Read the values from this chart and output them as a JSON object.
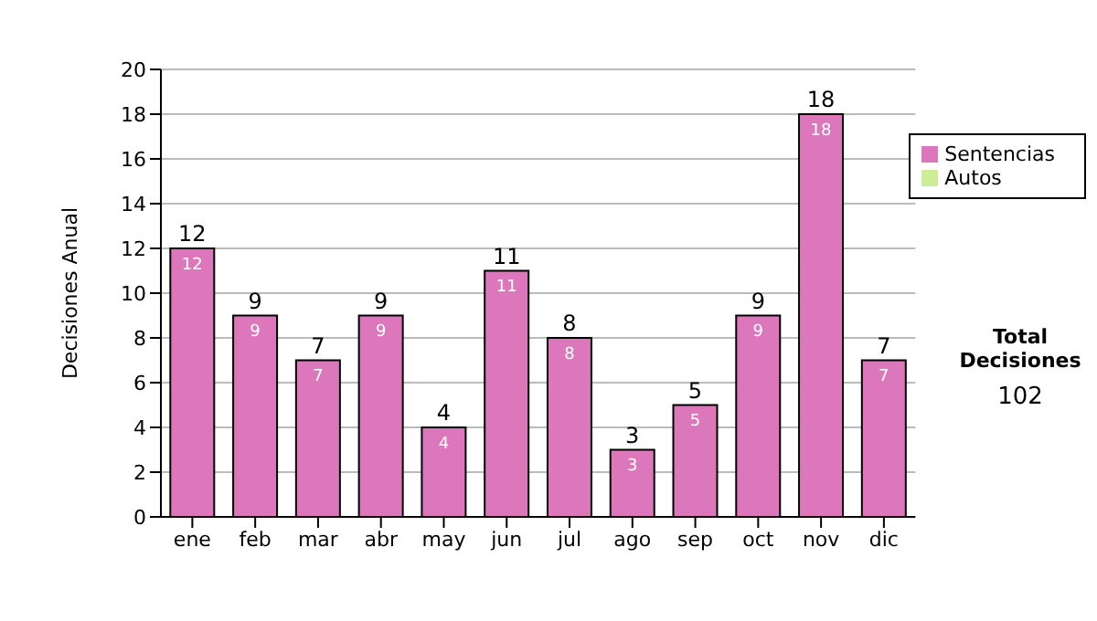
{
  "chart_data": {
    "type": "bar",
    "ylabel": "Decisiones Anual",
    "categories": [
      "ene",
      "feb",
      "mar",
      "abr",
      "may",
      "jun",
      "jul",
      "ago",
      "sep",
      "oct",
      "nov",
      "dic"
    ],
    "series": [
      {
        "name": "Sentencias",
        "color": "#dd77bb",
        "values": [
          12,
          9,
          7,
          9,
          4,
          11,
          8,
          3,
          5,
          9,
          18,
          7
        ]
      },
      {
        "name": "Autos",
        "color": "#ccee99",
        "values": [
          null,
          null,
          null,
          null,
          null,
          null,
          null,
          null,
          null,
          null,
          null,
          null
        ]
      }
    ],
    "stacked": true,
    "data_labels": true,
    "totals": [
      "12",
      "9",
      "7",
      "9",
      "4",
      "11",
      "8",
      "3",
      "5",
      "9",
      "18",
      "7"
    ],
    "ylim": [
      0,
      20
    ],
    "yticks": [
      0,
      2,
      4,
      6,
      8,
      10,
      12,
      14,
      16,
      18,
      20
    ],
    "grid": "y",
    "legend": "right",
    "annotations": [
      "Total Decisiones",
      "102"
    ]
  }
}
